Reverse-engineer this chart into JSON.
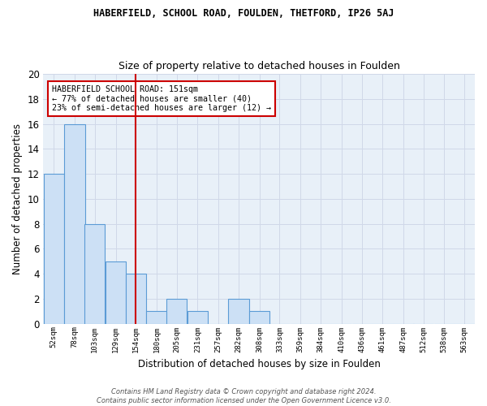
{
  "title1": "HABERFIELD, SCHOOL ROAD, FOULDEN, THETFORD, IP26 5AJ",
  "title2": "Size of property relative to detached houses in Foulden",
  "xlabel": "Distribution of detached houses by size in Foulden",
  "ylabel": "Number of detached properties",
  "bin_labels": [
    "52sqm",
    "78sqm",
    "103sqm",
    "129sqm",
    "154sqm",
    "180sqm",
    "205sqm",
    "231sqm",
    "257sqm",
    "282sqm",
    "308sqm",
    "333sqm",
    "359sqm",
    "384sqm",
    "410sqm",
    "436sqm",
    "461sqm",
    "487sqm",
    "512sqm",
    "538sqm",
    "563sqm"
  ],
  "bin_centers": [
    52,
    78,
    103,
    129,
    154,
    180,
    205,
    231,
    257,
    282,
    308,
    333,
    359,
    384,
    410,
    436,
    461,
    487,
    512,
    538,
    563
  ],
  "counts": [
    12,
    16,
    8,
    5,
    4,
    1,
    2,
    1,
    0,
    2,
    1,
    0,
    0,
    0,
    0,
    0,
    0,
    0,
    0,
    0,
    0
  ],
  "bar_color": "#cce0f5",
  "bar_edge_color": "#5b9bd5",
  "grid_color": "#d0d8e8",
  "bg_color": "#e8f0f8",
  "vline_x": 154,
  "vline_color": "#cc0000",
  "annotation_line1": "HABERFIELD SCHOOL ROAD: 151sqm",
  "annotation_line2": "← 77% of detached houses are smaller (40)",
  "annotation_line3": "23% of semi-detached houses are larger (12) →",
  "annotation_box_color": "#ffffff",
  "annotation_box_edge": "#cc0000",
  "ylim": [
    0,
    20
  ],
  "yticks": [
    0,
    2,
    4,
    6,
    8,
    10,
    12,
    14,
    16,
    18,
    20
  ],
  "footer": "Contains HM Land Registry data © Crown copyright and database right 2024.\nContains public sector information licensed under the Open Government Licence v3.0."
}
